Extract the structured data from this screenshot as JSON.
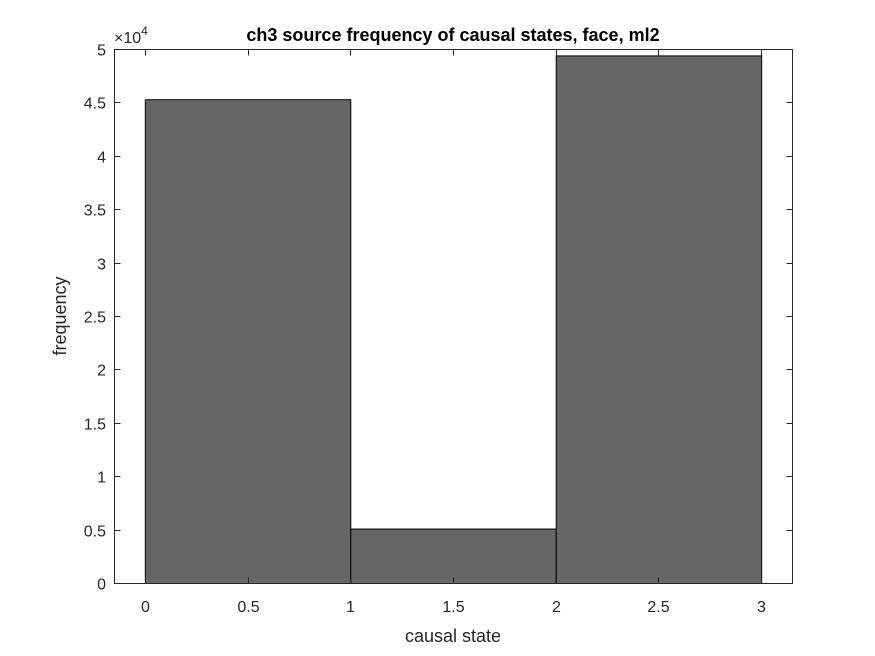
{
  "chart_data": {
    "type": "bar",
    "title": "ch3 source frequency of causal states, face, ml2",
    "xlabel": "causal state",
    "ylabel": "frequency",
    "xlim": [
      -0.15,
      3.15
    ],
    "ylim": [
      0,
      50000
    ],
    "x_ticks": [
      0,
      0.5,
      1,
      1.5,
      2,
      2.5,
      3
    ],
    "x_tick_labels": [
      "0",
      "0.5",
      "1",
      "1.5",
      "2",
      "2.5",
      "3"
    ],
    "y_ticks": [
      0,
      5000,
      10000,
      15000,
      20000,
      25000,
      30000,
      35000,
      40000,
      45000,
      50000
    ],
    "y_tick_labels": [
      "0",
      "0.5",
      "1",
      "1.5",
      "2",
      "2.5",
      "3",
      "3.5",
      "4",
      "4.5",
      "5"
    ],
    "y_exponent_base": "×10",
    "y_exponent_power": "4",
    "bins": [
      {
        "start": 0,
        "end": 1,
        "value": 45300
      },
      {
        "start": 1,
        "end": 2,
        "value": 5100
      },
      {
        "start": 2,
        "end": 3,
        "value": 49400
      }
    ],
    "bar_color": "#666666",
    "grid": false,
    "legend": "none"
  }
}
